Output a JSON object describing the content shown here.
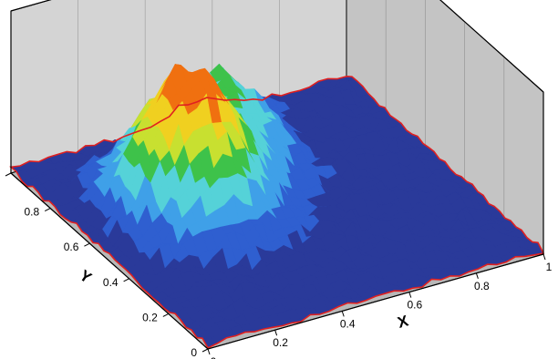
{
  "chart_data": {
    "type": "surface3d",
    "title": "",
    "xlabel": "X",
    "ylabel": "Y",
    "zlabel": "",
    "x_ticks": [
      "0",
      "0.2",
      "0.4",
      "0.6",
      "0.8",
      "1"
    ],
    "y_ticks": [
      "0",
      "0.2",
      "0.4",
      "0.6",
      "0.8",
      "1"
    ],
    "xlim": [
      0,
      1
    ],
    "ylim": [
      0,
      1
    ],
    "grid": true,
    "colormap": [
      "#2a3a9a",
      "#2f5fd0",
      "#3fa0e8",
      "#55d2d8",
      "#3ec24a",
      "#c8e030",
      "#f0d020",
      "#f07010",
      "#e01010"
    ],
    "boundary_color": "#e02020",
    "wall_color": "#d4d4d4",
    "floor_color": "#b8b8b8",
    "peak": {
      "x": 0.3,
      "y": 0.6,
      "level": 1.0
    },
    "secondary_ridge": {
      "x": 0.55,
      "y": 0.85,
      "level": 0.5
    }
  }
}
